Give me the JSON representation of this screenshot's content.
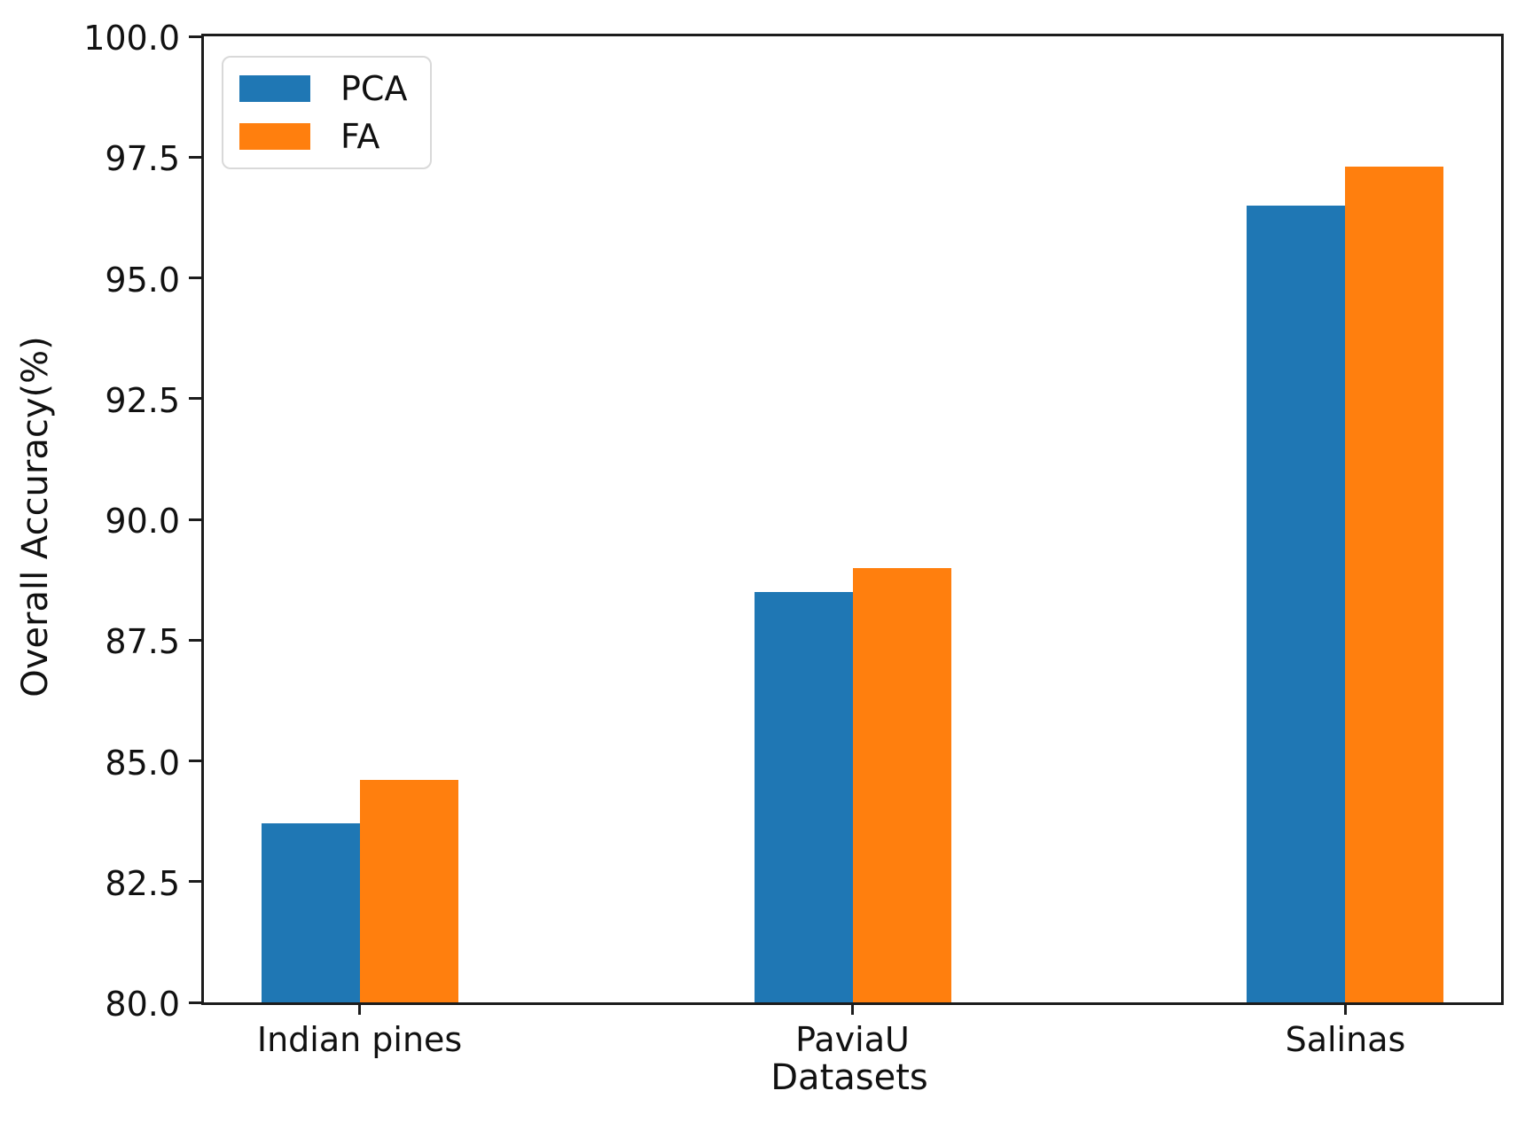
{
  "chart_data": {
    "type": "bar",
    "title": "",
    "xlabel": "Datasets",
    "ylabel": "Overall Accuracy(%)",
    "categories": [
      "Indian pines",
      "PaviaU",
      "Salinas"
    ],
    "series": [
      {
        "name": "PCA",
        "color": "#1f77b4",
        "values": [
          83.7,
          88.5,
          96.5
        ]
      },
      {
        "name": "FA",
        "color": "#ff7f0e",
        "values": [
          84.6,
          89.0,
          97.3
        ]
      }
    ],
    "ylim": [
      80.0,
      100.0
    ],
    "yticks": [
      80.0,
      82.5,
      85.0,
      87.5,
      90.0,
      92.5,
      95.0,
      97.5,
      100.0
    ],
    "ytick_format_decimals": 1,
    "grid": false,
    "legend_position": "upper-left"
  },
  "colors": {
    "background": "#ffffff",
    "spine": "#1c1c1c",
    "text": "#111111",
    "legend_border": "#d9d9d9",
    "pca_bar": "#1f77b4",
    "fa_bar": "#ff7f0e"
  }
}
